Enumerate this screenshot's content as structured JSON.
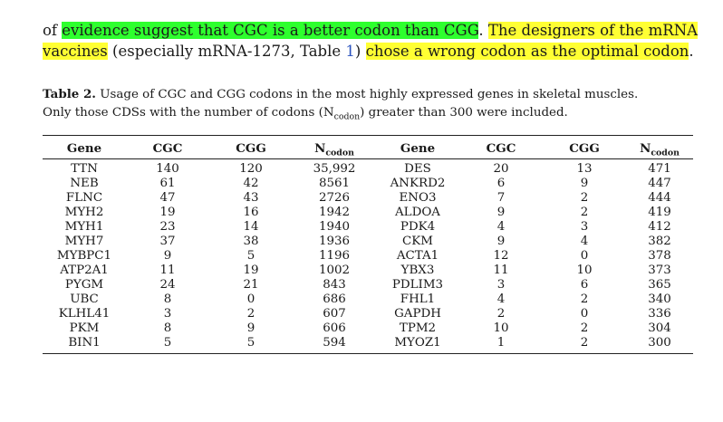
{
  "paragraph": {
    "line1": {
      "prefix": "of ",
      "green_highlight": "evidence suggest that CGC is a better codon than CGG",
      "sep": ". ",
      "yellow_highlight": "The designers of the mRNA"
    },
    "line2": {
      "yellow_highlight": "vaccines",
      "text1": " (especially mRNA-1273, Table ",
      "link": "1",
      "text2": ") ",
      "yellow_highlight2": "chose a wrong codon as the optimal codon",
      "end": "."
    }
  },
  "caption": {
    "label": "Table 2.",
    "line1": " Usage of CGC and CGG codons in the most highly expressed genes in skeletal muscles.",
    "line2_pre": "Only those CDSs with the number of codons (N",
    "line2_sub": "codon",
    "line2_post": ") greater than 300 were included."
  },
  "table": {
    "headers": {
      "gene": "Gene",
      "cgc": "CGC",
      "cgg": "CGG",
      "n": "N",
      "n_sub": "codon"
    },
    "rows": [
      {
        "g1": "TTN",
        "c1": "140",
        "d1": "120",
        "n1": "35,992",
        "g2": "DES",
        "c2": "20",
        "d2": "13",
        "n2": "471"
      },
      {
        "g1": "NEB",
        "c1": "61",
        "d1": "42",
        "n1": "8561",
        "g2": "ANKRD2",
        "c2": "6",
        "d2": "9",
        "n2": "447"
      },
      {
        "g1": "FLNC",
        "c1": "47",
        "d1": "43",
        "n1": "2726",
        "g2": "ENO3",
        "c2": "7",
        "d2": "2",
        "n2": "444"
      },
      {
        "g1": "MYH2",
        "c1": "19",
        "d1": "16",
        "n1": "1942",
        "g2": "ALDOA",
        "c2": "9",
        "d2": "2",
        "n2": "419"
      },
      {
        "g1": "MYH1",
        "c1": "23",
        "d1": "14",
        "n1": "1940",
        "g2": "PDK4",
        "c2": "4",
        "d2": "3",
        "n2": "412"
      },
      {
        "g1": "MYH7",
        "c1": "37",
        "d1": "38",
        "n1": "1936",
        "g2": "CKM",
        "c2": "9",
        "d2": "4",
        "n2": "382"
      },
      {
        "g1": "MYBPC1",
        "c1": "9",
        "d1": "5",
        "n1": "1196",
        "g2": "ACTA1",
        "c2": "12",
        "d2": "0",
        "n2": "378"
      },
      {
        "g1": "ATP2A1",
        "c1": "11",
        "d1": "19",
        "n1": "1002",
        "g2": "YBX3",
        "c2": "11",
        "d2": "10",
        "n2": "373"
      },
      {
        "g1": "PYGM",
        "c1": "24",
        "d1": "21",
        "n1": "843",
        "g2": "PDLIM3",
        "c2": "3",
        "d2": "6",
        "n2": "365"
      },
      {
        "g1": "UBC",
        "c1": "8",
        "d1": "0",
        "n1": "686",
        "g2": "FHL1",
        "c2": "4",
        "d2": "2",
        "n2": "340"
      },
      {
        "g1": "KLHL41",
        "c1": "3",
        "d1": "2",
        "n1": "607",
        "g2": "GAPDH",
        "c2": "2",
        "d2": "0",
        "n2": "336"
      },
      {
        "g1": "PKM",
        "c1": "8",
        "d1": "9",
        "n1": "606",
        "g2": "TPM2",
        "c2": "10",
        "d2": "2",
        "n2": "304"
      },
      {
        "g1": "BIN1",
        "c1": "5",
        "d1": "5",
        "n1": "594",
        "g2": "MYOZ1",
        "c2": "1",
        "d2": "2",
        "n2": "300"
      }
    ]
  }
}
